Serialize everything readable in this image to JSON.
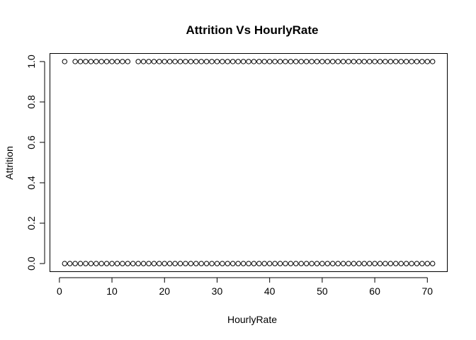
{
  "chart_data": {
    "type": "scatter",
    "title": "Attrition Vs HourlyRate",
    "xlabel": "HourlyRate",
    "ylabel": "Attrition",
    "xlim": [
      -1.8,
      73.8
    ],
    "ylim": [
      -0.04,
      1.04
    ],
    "xticks": [
      0,
      10,
      20,
      30,
      40,
      50,
      60,
      70
    ],
    "xtick_labels": [
      "0",
      "10",
      "20",
      "30",
      "40",
      "50",
      "60",
      "70"
    ],
    "yticks": [
      0,
      0.2,
      0.4,
      0.6,
      0.8,
      1.0
    ],
    "ytick_labels": [
      "0.0",
      "0.2",
      "0.4",
      "0.6",
      "0.8",
      "1.0"
    ],
    "grid": false,
    "legend": null,
    "series": [
      {
        "y": 1,
        "x": [
          1,
          3,
          4,
          5,
          6,
          7,
          8,
          9,
          10,
          11,
          12,
          13,
          15,
          16,
          17,
          18,
          19,
          20,
          21,
          22,
          23,
          24,
          25,
          26,
          27,
          28,
          29,
          30,
          31,
          32,
          33,
          34,
          35,
          36,
          37,
          38,
          39,
          40,
          41,
          42,
          43,
          44,
          45,
          46,
          47,
          48,
          49,
          50,
          51,
          52,
          53,
          54,
          55,
          56,
          57,
          58,
          59,
          60,
          61,
          62,
          63,
          64,
          65,
          66,
          67,
          68,
          69,
          70,
          71
        ]
      },
      {
        "y": 0,
        "x": [
          1,
          2,
          3,
          4,
          5,
          6,
          7,
          8,
          9,
          10,
          11,
          12,
          13,
          14,
          15,
          16,
          17,
          18,
          19,
          20,
          21,
          22,
          23,
          24,
          25,
          26,
          27,
          28,
          29,
          30,
          31,
          32,
          33,
          34,
          35,
          36,
          37,
          38,
          39,
          40,
          41,
          42,
          43,
          44,
          45,
          46,
          47,
          48,
          49,
          50,
          51,
          52,
          53,
          54,
          55,
          56,
          57,
          58,
          59,
          60,
          61,
          62,
          63,
          64,
          65,
          66,
          67,
          68,
          69,
          70,
          71
        ]
      }
    ]
  }
}
